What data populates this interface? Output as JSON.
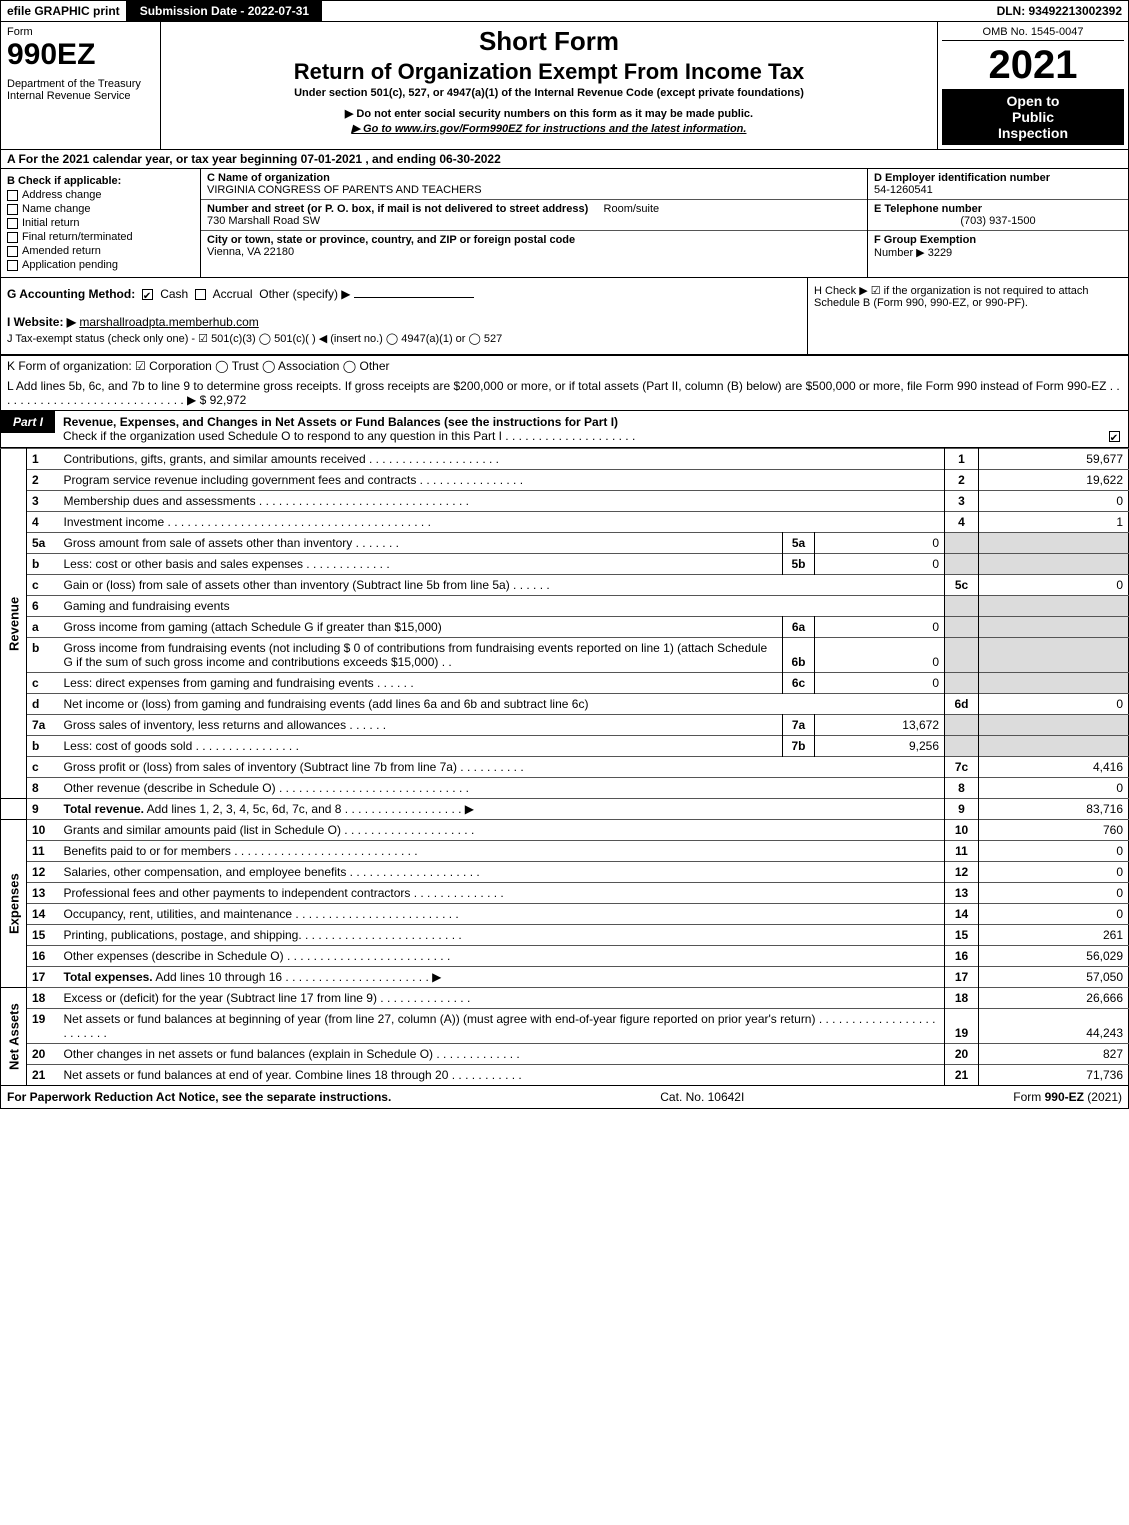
{
  "topbar": {
    "efile": "efile GRAPHIC print",
    "subdate_label": "Submission Date - 2022-07-31",
    "dln": "DLN: 93492213002392"
  },
  "header": {
    "form_label": "Form",
    "form_number": "990EZ",
    "dept1": "Department of the Treasury",
    "dept2": "Internal Revenue Service",
    "short_form": "Short Form",
    "title": "Return of Organization Exempt From Income Tax",
    "subtitle": "Under section 501(c), 527, or 4947(a)(1) of the Internal Revenue Code (except private foundations)",
    "warn1": "▶ Do not enter social security numbers on this form as it may be made public.",
    "warn2": "▶ Go to www.irs.gov/Form990EZ for instructions and the latest information.",
    "omb": "OMB No. 1545-0047",
    "year": "2021",
    "open1": "Open to",
    "open2": "Public",
    "open3": "Inspection"
  },
  "lineA": "A  For the 2021 calendar year, or tax year beginning 07-01-2021 , and ending 06-30-2022",
  "B": {
    "label": "B  Check if applicable:",
    "items": [
      "Address change",
      "Name change",
      "Initial return",
      "Final return/terminated",
      "Amended return",
      "Application pending"
    ]
  },
  "C": {
    "label": "C Name of organization",
    "name": "VIRGINIA CONGRESS OF PARENTS AND TEACHERS",
    "street_label": "Number and street (or P. O. box, if mail is not delivered to street address)",
    "street": "730 Marshall Road SW",
    "room_label": "Room/suite",
    "city_label": "City or town, state or province, country, and ZIP or foreign postal code",
    "city": "Vienna, VA  22180"
  },
  "D": {
    "label": "D Employer identification number",
    "ein": "54-1260541"
  },
  "E": {
    "label": "E Telephone number",
    "phone": "(703) 937-1500"
  },
  "F": {
    "label": "F Group Exemption",
    "label2": "Number  ▶",
    "value": "3229"
  },
  "G": {
    "label": "G Accounting Method:",
    "cash": "Cash",
    "accrual": "Accrual",
    "other": "Other (specify) ▶"
  },
  "H": {
    "text": "H   Check ▶  ☑  if the organization is not required to attach Schedule B (Form 990, 990-EZ, or 990-PF)."
  },
  "I": {
    "label": "I Website: ▶",
    "value": "marshallroadpta.memberhub.com"
  },
  "J": {
    "text": "J Tax-exempt status (check only one) -  ☑ 501(c)(3)  ◯ 501(c)(  ) ◀ (insert no.)  ◯ 4947(a)(1) or  ◯ 527"
  },
  "K": {
    "text": "K Form of organization:   ☑ Corporation   ◯ Trust   ◯ Association   ◯ Other"
  },
  "L": {
    "text": "L Add lines 5b, 6c, and 7b to line 9 to determine gross receipts. If gross receipts are $200,000 or more, or if total assets (Part II, column (B) below) are $500,000 or more, file Form 990 instead of Form 990-EZ  .  .  .  .  .  .  .  .  .  .  .  .  .  .  .  .  .  .  .  .  .  .  .  .  .  .  .  .  . ▶ $ 92,972"
  },
  "part1": {
    "label": "Part I",
    "title": "Revenue, Expenses, and Changes in Net Assets or Fund Balances (see the instructions for Part I)",
    "sub": "Check if the organization used Schedule O to respond to any question in this Part I .  .  .  .  .  .  .  .  .  .  .  .  .  .  .  .  .  .  .  ."
  },
  "sections": {
    "revenue": "Revenue",
    "expenses": "Expenses",
    "netassets": "Net Assets"
  },
  "rows": {
    "r1": {
      "n": "1",
      "desc": "Contributions, gifts, grants, and similar amounts received  .  .  .  .  .  .  .  .  .  .  .  .  .  .  .  .  .  .  .  .",
      "box": "1",
      "amt": "59,677"
    },
    "r2": {
      "n": "2",
      "desc": "Program service revenue including government fees and contracts  .  .  .  .  .  .  .  .  .  .  .  .  .  .  .  .",
      "box": "2",
      "amt": "19,622"
    },
    "r3": {
      "n": "3",
      "desc": "Membership dues and assessments  .  .  .  .  .  .  .  .  .  .  .  .  .  .  .  .  .  .  .  .  .  .  .  .  .  .  .  .  .  .  .  .",
      "box": "3",
      "amt": "0"
    },
    "r4": {
      "n": "4",
      "desc": "Investment income  .  .  .  .  .  .  .  .  .  .  .  .  .  .  .  .  .  .  .  .  .  .  .  .  .  .  .  .  .  .  .  .  .  .  .  .  .  .  .  .",
      "box": "4",
      "amt": "1"
    },
    "r5a": {
      "n": "5a",
      "desc": "Gross amount from sale of assets other than inventory  .  .  .  .  .  .  .",
      "sub": "5a",
      "subamt": "0"
    },
    "r5b": {
      "n": "b",
      "desc": "Less: cost or other basis and sales expenses  .  .  .  .  .  .  .  .  .  .  .  .  .",
      "sub": "5b",
      "subamt": "0"
    },
    "r5c": {
      "n": "c",
      "desc": "Gain or (loss) from sale of assets other than inventory (Subtract line 5b from line 5a)  .  .  .  .  .  .",
      "box": "5c",
      "amt": "0"
    },
    "r6": {
      "n": "6",
      "desc": "Gaming and fundraising events"
    },
    "r6a": {
      "n": "a",
      "desc": "Gross income from gaming (attach Schedule G if greater than $15,000)",
      "sub": "6a",
      "subamt": "0"
    },
    "r6b": {
      "n": "b",
      "desc": "Gross income from fundraising events (not including $ 0          of contributions from fundraising events reported on line 1) (attach Schedule G if the sum of such gross income and contributions exceeds $15,000)   .   .",
      "sub": "6b",
      "subamt": "0"
    },
    "r6c": {
      "n": "c",
      "desc": "Less: direct expenses from gaming and fundraising events  .  .  .  .  .  .",
      "sub": "6c",
      "subamt": "0"
    },
    "r6d": {
      "n": "d",
      "desc": "Net income or (loss) from gaming and fundraising events (add lines 6a and 6b and subtract line 6c)",
      "box": "6d",
      "amt": "0"
    },
    "r7a": {
      "n": "7a",
      "desc": "Gross sales of inventory, less returns and allowances  .  .  .  .  .  .",
      "sub": "7a",
      "subamt": "13,672"
    },
    "r7b": {
      "n": "b",
      "desc": "Less: cost of goods sold        .  .  .  .  .  .  .  .  .  .  .  .  .  .  .  .",
      "sub": "7b",
      "subamt": "9,256"
    },
    "r7c": {
      "n": "c",
      "desc": "Gross profit or (loss) from sales of inventory (Subtract line 7b from line 7a)  .  .  .  .  .  .  .  .  .  .",
      "box": "7c",
      "amt": "4,416"
    },
    "r8": {
      "n": "8",
      "desc": "Other revenue (describe in Schedule O)  .  .  .  .  .  .  .  .  .  .  .  .  .  .  .  .  .  .  .  .  .  .  .  .  .  .  .  .  .",
      "box": "8",
      "amt": "0"
    },
    "r9": {
      "n": "9",
      "desc": "<strong>Total revenue.</strong> Add lines 1, 2, 3, 4, 5c, 6d, 7c, and 8  .  .  .  .  .  .  .  .  .  .  .  .  .  .  .  .  .  .   ▶",
      "box": "9",
      "amt": "83,716"
    },
    "r10": {
      "n": "10",
      "desc": "Grants and similar amounts paid (list in Schedule O)  .  .  .  .  .  .  .  .  .  .  .  .  .  .  .  .  .  .  .  .",
      "box": "10",
      "amt": "760"
    },
    "r11": {
      "n": "11",
      "desc": "Benefits paid to or for members      .  .  .  .  .  .  .  .  .  .  .  .  .  .  .  .  .  .  .  .  .  .  .  .  .  .  .  .",
      "box": "11",
      "amt": "0"
    },
    "r12": {
      "n": "12",
      "desc": "Salaries, other compensation, and employee benefits  .  .  .  .  .  .  .  .  .  .  .  .  .  .  .  .  .  .  .  .",
      "box": "12",
      "amt": "0"
    },
    "r13": {
      "n": "13",
      "desc": "Professional fees and other payments to independent contractors  .  .  .  .  .  .  .  .  .  .  .  .  .  .",
      "box": "13",
      "amt": "0"
    },
    "r14": {
      "n": "14",
      "desc": "Occupancy, rent, utilities, and maintenance  .  .  .  .  .  .  .  .  .  .  .  .  .  .  .  .  .  .  .  .  .  .  .  .  .",
      "box": "14",
      "amt": "0"
    },
    "r15": {
      "n": "15",
      "desc": "Printing, publications, postage, and shipping.  .  .  .  .  .  .  .  .  .  .  .  .  .  .  .  .  .  .  .  .  .  .  .  .",
      "box": "15",
      "amt": "261"
    },
    "r16": {
      "n": "16",
      "desc": "Other expenses (describe in Schedule O)     .  .  .  .  .  .  .  .  .  .  .  .  .  .  .  .  .  .  .  .  .  .  .  .  .",
      "box": "16",
      "amt": "56,029"
    },
    "r17": {
      "n": "17",
      "desc": "<strong>Total expenses.</strong> Add lines 10 through 16     .  .  .  .  .  .  .  .  .  .  .  .  .  .  .  .  .  .  .  .  .  .   ▶",
      "box": "17",
      "amt": "57,050"
    },
    "r18": {
      "n": "18",
      "desc": "Excess or (deficit) for the year (Subtract line 17 from line 9)       .  .  .  .  .  .  .  .  .  .  .  .  .  .",
      "box": "18",
      "amt": "26,666"
    },
    "r19": {
      "n": "19",
      "desc": "Net assets or fund balances at beginning of year (from line 27, column (A)) (must agree with end-of-year figure reported on prior year's return)  .  .  .  .  .  .  .  .  .  .  .  .  .  .  .  .  .  .  .  .  .  .  .  .  .",
      "box": "19",
      "amt": "44,243"
    },
    "r20": {
      "n": "20",
      "desc": "Other changes in net assets or fund balances (explain in Schedule O)  .  .  .  .  .  .  .  .  .  .  .  .  .",
      "box": "20",
      "amt": "827"
    },
    "r21": {
      "n": "21",
      "desc": "Net assets or fund balances at end of year. Combine lines 18 through 20  .  .  .  .  .  .  .  .  .  .  .",
      "box": "21",
      "amt": "71,736"
    }
  },
  "footer": {
    "left": "For Paperwork Reduction Act Notice, see the separate instructions.",
    "mid": "Cat. No. 10642I",
    "right": "Form 990-EZ (2021)"
  },
  "colors": {
    "header_black": "#000000",
    "shade": "#dcdcdc",
    "text": "#000000",
    "bg": "#ffffff"
  }
}
